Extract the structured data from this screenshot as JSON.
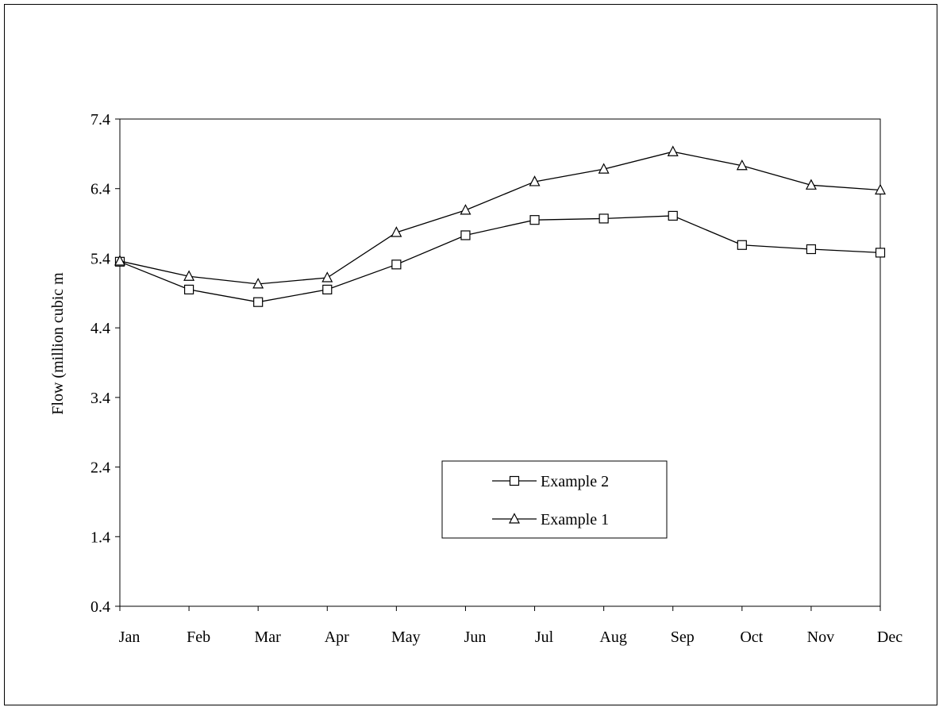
{
  "chart_data": {
    "type": "line",
    "title": "",
    "xlabel": "",
    "ylabel": "Flow (million cubic m",
    "categories": [
      "Jan",
      "Feb",
      "Mar",
      "Apr",
      "May",
      "Jun",
      "Jul",
      "Aug",
      "Sep",
      "Oct",
      "Nov",
      "Dec"
    ],
    "ylim": [
      0.4,
      7.4
    ],
    "yticks": [
      "0.4",
      "1.4",
      "2.4",
      "3.4",
      "4.4",
      "5.4",
      "6.4",
      "7.4"
    ],
    "grid": false,
    "legend_position": "center-right",
    "series": [
      {
        "name": "Example 2",
        "marker": "square",
        "values": [
          5.35,
          4.95,
          4.77,
          4.95,
          5.31,
          5.73,
          5.95,
          5.97,
          6.01,
          5.59,
          5.53,
          5.48
        ]
      },
      {
        "name": "Example 1",
        "marker": "triangle",
        "values": [
          5.36,
          5.14,
          5.03,
          5.12,
          5.77,
          6.09,
          6.5,
          6.68,
          6.93,
          6.73,
          6.45,
          6.38
        ]
      }
    ]
  },
  "colors": {
    "line": "#000000",
    "marker_fill": "#ffffff",
    "background": "#ffffff"
  }
}
